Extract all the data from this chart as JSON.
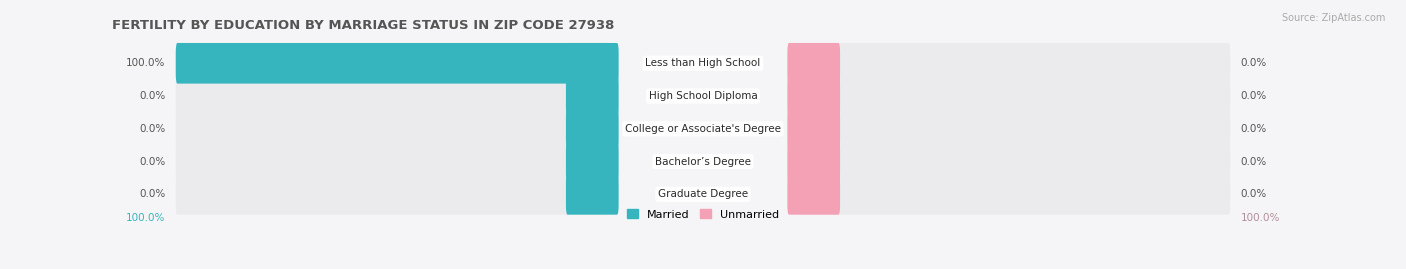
{
  "title": "FERTILITY BY EDUCATION BY MARRIAGE STATUS IN ZIP CODE 27938",
  "source": "Source: ZipAtlas.com",
  "categories": [
    "Less than High School",
    "High School Diploma",
    "College or Associate's Degree",
    "Bachelor’s Degree",
    "Graduate Degree"
  ],
  "married_values": [
    100.0,
    0.0,
    0.0,
    0.0,
    0.0
  ],
  "unmarried_values": [
    0.0,
    0.0,
    0.0,
    0.0,
    0.0
  ],
  "married_color": "#36b5bf",
  "unmarried_color": "#f4a0b5",
  "bar_track_color": "#e8e8ec",
  "background_color": "#f5f5f7",
  "row_bg_color": "#ebebee",
  "title_fontsize": 9.5,
  "source_fontsize": 7,
  "label_fontsize": 7.5,
  "val_fontsize": 7.5,
  "legend_fontsize": 8,
  "total_width": 100.0,
  "left_axis_label": "100.0%",
  "right_axis_label": "100.0%",
  "left_axis_color": "#36b5bf",
  "right_axis_color": "#b09098"
}
